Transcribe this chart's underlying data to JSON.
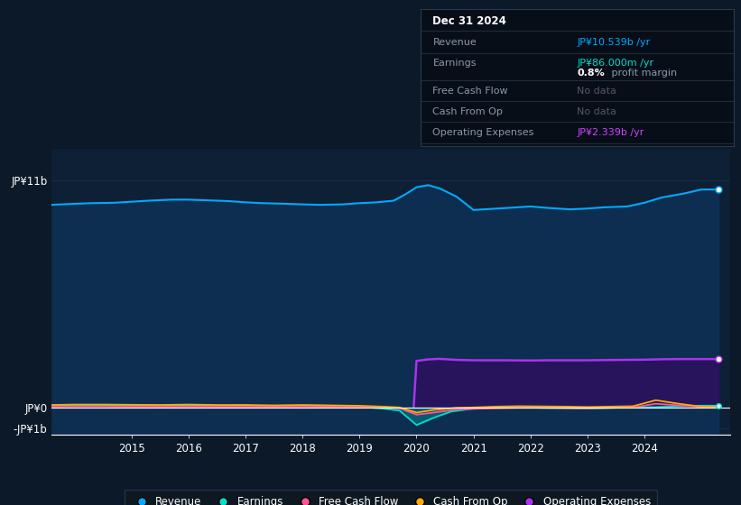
{
  "bg_color": "#0b1929",
  "plot_bg_color": "#0d2035",
  "grid_color": "#1a3050",
  "ylabel_top": "JP¥11b",
  "ylabel_zero": "JP¥0",
  "ylabel_neg": "-JP¥1b",
  "xlabel_ticks": [
    2015,
    2016,
    2017,
    2018,
    2019,
    2020,
    2021,
    2022,
    2023,
    2024
  ],
  "ylim_min": -1300000000.0,
  "ylim_max": 12500000000.0,
  "xlim_start": 2013.6,
  "xlim_end": 2025.5,
  "info_box": {
    "title": "Dec 31 2024",
    "revenue_label": "Revenue",
    "revenue_value": "JP¥10.539b /yr",
    "earnings_label": "Earnings",
    "earnings_value": "JP¥86.000m /yr",
    "profit_margin_bold": "0.8%",
    "profit_margin_rest": " profit margin",
    "fcf_label": "Free Cash Flow",
    "fcf_value": "No data",
    "cfop_label": "Cash From Op",
    "cfop_value": "No data",
    "opex_label": "Operating Expenses",
    "opex_value": "JP¥2.339b /yr",
    "revenue_color": "#00aaff",
    "earnings_color": "#00ddcc",
    "opex_color": "#cc44ff",
    "nodata_color": "#555566"
  },
  "legend": [
    {
      "label": "Revenue",
      "color": "#00aaff"
    },
    {
      "label": "Earnings",
      "color": "#00ddcc"
    },
    {
      "label": "Free Cash Flow",
      "color": "#ff5599"
    },
    {
      "label": "Cash From Op",
      "color": "#ffaa00"
    },
    {
      "label": "Operating Expenses",
      "color": "#aa33ee"
    }
  ],
  "revenue_x": [
    2013.6,
    2014.0,
    2014.3,
    2014.7,
    2015.0,
    2015.3,
    2015.7,
    2016.0,
    2016.3,
    2016.7,
    2017.0,
    2017.3,
    2017.7,
    2018.0,
    2018.3,
    2018.7,
    2019.0,
    2019.3,
    2019.6,
    2019.8,
    2020.0,
    2020.2,
    2020.4,
    2020.7,
    2021.0,
    2021.3,
    2021.6,
    2022.0,
    2022.3,
    2022.7,
    2023.0,
    2023.3,
    2023.7,
    2024.0,
    2024.3,
    2024.7,
    2025.0,
    2025.3
  ],
  "revenue_y": [
    9800000000.0,
    9850000000.0,
    9880000000.0,
    9900000000.0,
    9950000000.0,
    10000000000.0,
    10050000000.0,
    10050000000.0,
    10020000000.0,
    9980000000.0,
    9920000000.0,
    9880000000.0,
    9850000000.0,
    9820000000.0,
    9800000000.0,
    9820000000.0,
    9880000000.0,
    9920000000.0,
    10000000000.0,
    10300000000.0,
    10650000000.0,
    10750000000.0,
    10600000000.0,
    10200000000.0,
    9550000000.0,
    9600000000.0,
    9650000000.0,
    9720000000.0,
    9650000000.0,
    9580000000.0,
    9620000000.0,
    9680000000.0,
    9720000000.0,
    9900000000.0,
    10150000000.0,
    10350000000.0,
    10539000000.0,
    10539000000.0
  ],
  "earnings_x": [
    2013.6,
    2014.0,
    2014.5,
    2015.0,
    2015.5,
    2016.0,
    2016.5,
    2017.0,
    2017.5,
    2018.0,
    2018.5,
    2019.0,
    2019.4,
    2019.7,
    2020.0,
    2020.3,
    2020.6,
    2021.0,
    2021.4,
    2021.8,
    2022.2,
    2022.6,
    2023.0,
    2023.4,
    2023.8,
    2024.2,
    2024.6,
    2025.0,
    2025.3
  ],
  "earnings_y": [
    80000000.0,
    100000000.0,
    110000000.0,
    100000000.0,
    90000000.0,
    100000000.0,
    80000000.0,
    90000000.0,
    70000000.0,
    80000000.0,
    60000000.0,
    30000000.0,
    -50000000.0,
    -150000000.0,
    -850000000.0,
    -500000000.0,
    -200000000.0,
    -50000000.0,
    10000000.0,
    20000000.0,
    -20000000.0,
    -30000000.0,
    -50000000.0,
    -20000000.0,
    0.0,
    20000000.0,
    60000000.0,
    86000000.0,
    86000000.0
  ],
  "fcf_x": [
    2013.6,
    2014.0,
    2014.5,
    2015.0,
    2015.5,
    2016.0,
    2016.5,
    2017.0,
    2017.5,
    2018.0,
    2018.5,
    2019.0,
    2019.4,
    2019.7,
    2020.0,
    2020.3,
    2020.7,
    2021.0,
    2021.4,
    2021.8,
    2022.2,
    2022.6,
    2023.0,
    2023.4,
    2023.8,
    2024.2,
    2024.6,
    2025.0,
    2025.3
  ],
  "fcf_y": [
    40000000.0,
    50000000.0,
    50000000.0,
    40000000.0,
    35000000.0,
    40000000.0,
    35000000.0,
    35000000.0,
    30000000.0,
    40000000.0,
    30000000.0,
    20000000.0,
    0.0,
    -40000000.0,
    -350000000.0,
    -250000000.0,
    -100000000.0,
    -70000000.0,
    -40000000.0,
    -20000000.0,
    -20000000.0,
    -30000000.0,
    -40000000.0,
    -20000000.0,
    0.0,
    180000000.0,
    100000000.0,
    20000000.0,
    20000000.0
  ],
  "cashop_x": [
    2013.6,
    2014.0,
    2014.5,
    2015.0,
    2015.5,
    2016.0,
    2016.5,
    2017.0,
    2017.5,
    2018.0,
    2018.5,
    2019.0,
    2019.4,
    2019.7,
    2020.0,
    2020.3,
    2020.7,
    2021.0,
    2021.4,
    2021.8,
    2022.2,
    2022.6,
    2023.0,
    2023.4,
    2023.8,
    2024.2,
    2024.6,
    2025.0,
    2025.3
  ],
  "cashop_y": [
    120000000.0,
    140000000.0,
    140000000.0,
    130000000.0,
    120000000.0,
    140000000.0,
    120000000.0,
    120000000.0,
    100000000.0,
    120000000.0,
    100000000.0,
    80000000.0,
    40000000.0,
    0.0,
    -250000000.0,
    -120000000.0,
    -20000000.0,
    0.0,
    40000000.0,
    60000000.0,
    50000000.0,
    40000000.0,
    20000000.0,
    40000000.0,
    60000000.0,
    350000000.0,
    180000000.0,
    40000000.0,
    40000000.0
  ],
  "opex_x": [
    2019.95,
    2020.0,
    2020.2,
    2020.4,
    2020.7,
    2021.0,
    2021.3,
    2021.6,
    2022.0,
    2022.3,
    2022.6,
    2023.0,
    2023.3,
    2023.6,
    2024.0,
    2024.3,
    2024.6,
    2025.0,
    2025.3
  ],
  "opex_y": [
    0.0,
    2250000000.0,
    2320000000.0,
    2350000000.0,
    2300000000.0,
    2280000000.0,
    2280000000.0,
    2280000000.0,
    2270000000.0,
    2280000000.0,
    2280000000.0,
    2280000000.0,
    2290000000.0,
    2300000000.0,
    2310000000.0,
    2330000000.0,
    2339000000.0,
    2339000000.0,
    2339000000.0
  ]
}
